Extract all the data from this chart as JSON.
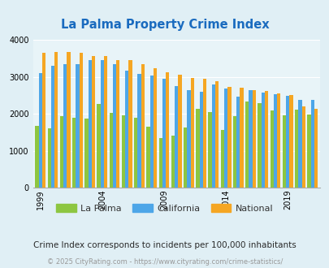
{
  "title": "La Palma Property Crime Index",
  "years": [
    1999,
    2000,
    2001,
    2002,
    2003,
    2004,
    2005,
    2006,
    2007,
    2008,
    2009,
    2010,
    2011,
    2012,
    2013,
    2014,
    2015,
    2016,
    2017,
    2018,
    2019,
    2020,
    2021
  ],
  "la_palma": [
    1670,
    1600,
    1940,
    1900,
    1880,
    2260,
    2020,
    1960,
    1890,
    1650,
    1340,
    1420,
    1620,
    2130,
    2050,
    1560,
    1930,
    2340,
    2290,
    2100,
    1960,
    2120,
    1980
  ],
  "california": [
    3110,
    3310,
    3360,
    3340,
    3450,
    3450,
    3360,
    3170,
    3080,
    3050,
    2960,
    2750,
    2640,
    2590,
    2790,
    2690,
    2470,
    2640,
    2580,
    2530,
    2490,
    2390,
    2380
  ],
  "national": [
    3650,
    3680,
    3680,
    3660,
    3570,
    3570,
    3470,
    3460,
    3340,
    3240,
    3120,
    3060,
    2970,
    2950,
    2880,
    2740,
    2700,
    2640,
    2620,
    2560,
    2510,
    2200,
    2130
  ],
  "la_palma_color": "#8dc641",
  "california_color": "#4da6e8",
  "national_color": "#f5a623",
  "background_color": "#e0eff5",
  "plot_bg_color": "#e8f4f8",
  "ylim": [
    0,
    4000
  ],
  "yticks": [
    0,
    1000,
    2000,
    3000,
    4000
  ],
  "xlabel_ticks": [
    1999,
    2004,
    2009,
    2014,
    2019
  ],
  "subtitle": "Crime Index corresponds to incidents per 100,000 inhabitants",
  "footer": "© 2025 CityRating.com - https://www.cityrating.com/crime-statistics/",
  "title_color": "#1a6bbf",
  "subtitle_color": "#2a2a2a",
  "footer_color": "#999999"
}
